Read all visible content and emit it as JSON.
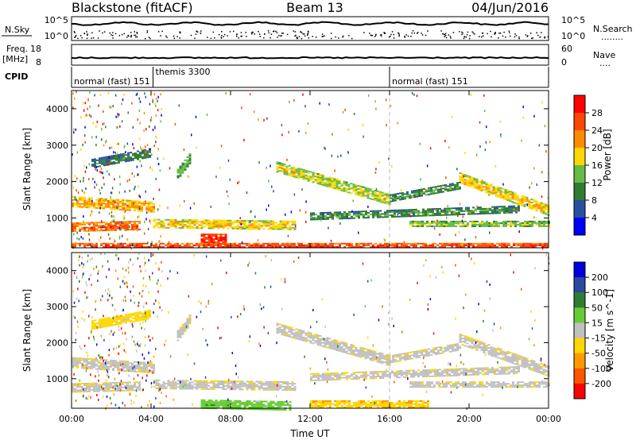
{
  "header": {
    "title": "Blackstone (fitACF)",
    "beam": "Beam 13",
    "date": "04/Jun/2016"
  },
  "labels": {
    "n_sky": "N.Sky",
    "n_search": "N.Search",
    "n_search_dots": "........",
    "freq": "Freq.",
    "freq_unit": "[MHz]",
    "nave": "Nave",
    "nave_dots": "....",
    "cpid": "CPID",
    "sky_top": "10^5",
    "sky_bottom": "10^0",
    "search_top": "10^5",
    "search_bottom": "10^0",
    "freq_top": "18",
    "freq_bottom": "8",
    "nave_top": "60",
    "nave_bottom": "0"
  },
  "cpid_segments": [
    {
      "label": "normal (fast) 151",
      "start_h": 0
    },
    {
      "label": "themis 3300",
      "start_h": 4.1
    },
    {
      "label": "normal (fast) 151",
      "start_h": 16
    }
  ],
  "time_ticks": [
    "00:00",
    "04:00",
    "08:00",
    "12:00",
    "16:00",
    "20:00",
    "00:00"
  ],
  "xlabel": "Time UT",
  "colors": {
    "power_scale": [
      "#0000ff",
      "#2850a0",
      "#2e7d32",
      "#66bb44",
      "#ffd700",
      "#ff8c00",
      "#ff4500",
      "#ff0000"
    ],
    "velocity_scale": [
      "#0000dd",
      "#2a4aa0",
      "#2e7d32",
      "#66cc33",
      "#c0c0c0",
      "#ffd700",
      "#ff9900",
      "#ff5500",
      "#ff0000"
    ]
  },
  "chart_data": [
    {
      "type": "heatmap",
      "panel": "power",
      "ylabel": "Slant Range [km]",
      "ylim": [
        180,
        4500
      ],
      "xlim_hours": [
        0,
        24
      ],
      "y_ticks": [
        1000,
        2000,
        3000,
        4000
      ],
      "colorbar": {
        "label": "Power [dB]",
        "ticks": [
          "4",
          "8",
          "12",
          "16",
          "20",
          "24",
          "28"
        ],
        "range": [
          0,
          32
        ]
      },
      "bands": [
        {
          "t0": 0.0,
          "t1": 4.1,
          "r_start": 1450,
          "r_end": 1300,
          "width": 300,
          "value": 22
        },
        {
          "t0": 0.0,
          "t1": 3.4,
          "r_start": 750,
          "r_end": 800,
          "width": 250,
          "value": 26
        },
        {
          "t0": 4.1,
          "t1": 11.2,
          "r_start": 850,
          "r_end": 800,
          "width": 250,
          "value": 20
        },
        {
          "t0": 6.5,
          "t1": 7.8,
          "r_start": 420,
          "r_end": 420,
          "width": 300,
          "value": 30
        },
        {
          "t0": 1.0,
          "t1": 4.0,
          "r_start": 2500,
          "r_end": 2800,
          "width": 250,
          "value": 10
        },
        {
          "t0": 5.3,
          "t1": 6.0,
          "r_start": 2200,
          "r_end": 2700,
          "width": 300,
          "value": 14
        },
        {
          "t0": 10.3,
          "t1": 16.0,
          "r_start": 2400,
          "r_end": 1500,
          "width": 300,
          "value": 18
        },
        {
          "t0": 16.0,
          "t1": 19.5,
          "r_start": 1550,
          "r_end": 1900,
          "width": 200,
          "value": 12
        },
        {
          "t0": 19.5,
          "t1": 24.0,
          "r_start": 2100,
          "r_end": 1200,
          "width": 300,
          "value": 20
        },
        {
          "t0": 12.0,
          "t1": 22.5,
          "r_start": 1050,
          "r_end": 1250,
          "width": 200,
          "value": 12
        },
        {
          "t0": 17.0,
          "t1": 24.0,
          "r_start": 850,
          "r_end": 850,
          "width": 150,
          "value": 16
        },
        {
          "t0": 0.0,
          "t1": 24.0,
          "r_start": 250,
          "r_end": 250,
          "width": 130,
          "value": 28
        }
      ]
    },
    {
      "type": "heatmap",
      "panel": "velocity",
      "ylabel": "Slant Range [km]",
      "ylim": [
        180,
        4500
      ],
      "xlim_hours": [
        0,
        24
      ],
      "y_ticks": [
        1000,
        2000,
        3000,
        4000
      ],
      "colorbar": {
        "label": "Velocity [m s^-1]",
        "ticks": [
          "200",
          "100",
          "50",
          "15",
          "-15",
          "-50",
          "-100",
          "-200"
        ],
        "range": [
          -250,
          250
        ]
      },
      "bands": [
        {
          "t0": 0.0,
          "t1": 4.1,
          "r_start": 1450,
          "r_end": 1300,
          "width": 300,
          "value": 0
        },
        {
          "t0": 0.0,
          "t1": 3.4,
          "r_start": 750,
          "r_end": 800,
          "width": 250,
          "value": 0
        },
        {
          "t0": 4.1,
          "t1": 11.2,
          "r_start": 850,
          "r_end": 800,
          "width": 250,
          "value": 0
        },
        {
          "t0": 6.5,
          "t1": 11.0,
          "r_start": 300,
          "r_end": 250,
          "width": 250,
          "value": 70
        },
        {
          "t0": 1.0,
          "t1": 4.0,
          "r_start": 2500,
          "r_end": 2800,
          "width": 250,
          "value": -40
        },
        {
          "t0": 5.3,
          "t1": 6.0,
          "r_start": 2200,
          "r_end": 2700,
          "width": 300,
          "value": 0
        },
        {
          "t0": 10.3,
          "t1": 16.0,
          "r_start": 2400,
          "r_end": 1500,
          "width": 300,
          "value": 0
        },
        {
          "t0": 16.0,
          "t1": 19.5,
          "r_start": 1550,
          "r_end": 1900,
          "width": 200,
          "value": 0
        },
        {
          "t0": 19.5,
          "t1": 24.0,
          "r_start": 2100,
          "r_end": 1200,
          "width": 300,
          "value": 0
        },
        {
          "t0": 12.0,
          "t1": 22.5,
          "r_start": 1050,
          "r_end": 1250,
          "width": 200,
          "value": 0
        },
        {
          "t0": 17.0,
          "t1": 24.0,
          "r_start": 850,
          "r_end": 850,
          "width": 150,
          "value": 0
        },
        {
          "t0": 12.0,
          "t1": 18.0,
          "r_start": 300,
          "r_end": 300,
          "width": 200,
          "value": -60
        }
      ]
    }
  ]
}
